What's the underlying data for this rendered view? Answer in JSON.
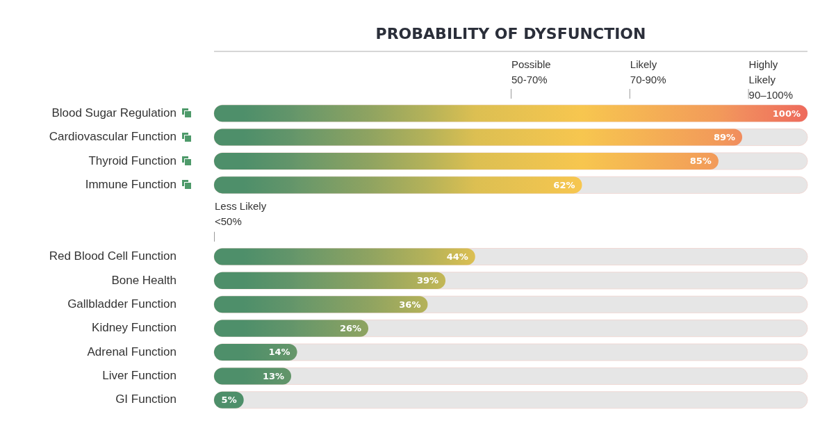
{
  "chart_data": {
    "type": "bar",
    "orientation": "horizontal",
    "title": "PROBABILITY OF DYSFUNCTION",
    "categories": [
      "Blood Sugar Regulation",
      "Cardiovascular Function",
      "Thyroid Function",
      "Immune Function",
      null,
      null,
      "Red Blood Cell Function",
      "Bone Health",
      "Gallbladder Function",
      "Kidney Function",
      "Adrenal Function",
      "Liver Function",
      "GI Function"
    ],
    "values": [
      100,
      89,
      85,
      62,
      null,
      null,
      44,
      39,
      36,
      26,
      14,
      13,
      5
    ],
    "colors": [
      "#ee6a5c",
      "#f18c5e",
      "#f29a5a",
      "#f7c64f",
      null,
      null,
      "#dcbf52",
      "#c3b756",
      "#b5b259",
      "#8ea361",
      "#67976a",
      "#63956a",
      "#4e8f6a"
    ],
    "value_labels": [
      "100%",
      "89%",
      "85%",
      "62%",
      null,
      null,
      "44%",
      "39%",
      "36%",
      "26%",
      "14%",
      "13%",
      "5%"
    ],
    "xlim": [
      0,
      100
    ],
    "tick_labels": "y",
    "legend": false,
    "ref_lines": [
      {
        "axis": "x",
        "value": 50,
        "label": "Possible\n50-70%"
      },
      {
        "axis": "x",
        "value": 70,
        "label": "Likely\n70-90%"
      },
      {
        "axis": "x",
        "value": 90,
        "label": "Highly\nLikely\n90–100%"
      }
    ],
    "annotations": [
      "Less Likely\n<50%"
    ]
  }
}
